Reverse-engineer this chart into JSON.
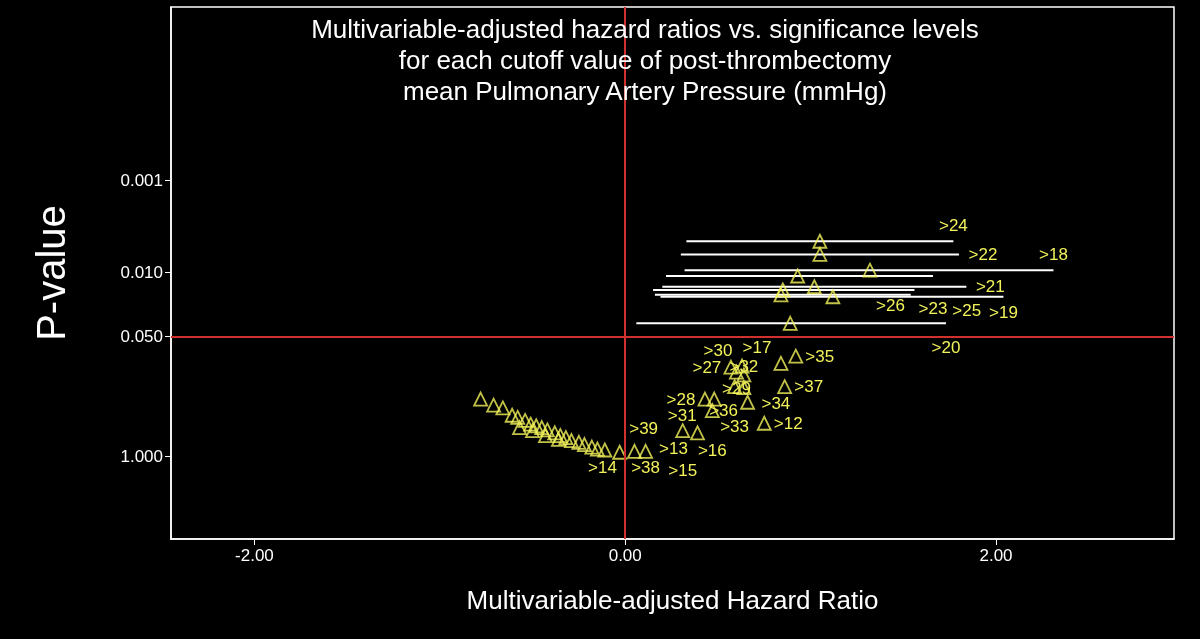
{
  "chart_data": {
    "type": "scatter",
    "title": "Multivariable-adjusted hazard ratios vs. significance levels\nfor each cutoff value of post-thrombectomy\nmean Pulmonary Artery Pressure (mmHg)",
    "xlabel": "Multivariable-adjusted Hazard Ratio",
    "ylabel": "P-value",
    "log": "y",
    "marker": "triangle",
    "grid": false,
    "xlim": [
      -2.45,
      2.96
    ],
    "xticks": [
      {
        "value": -2,
        "label": "-2.00"
      },
      {
        "value": 0,
        "label": "0.00"
      },
      {
        "value": 2,
        "label": "2.00"
      }
    ],
    "ylim": [
      8,
      1.3e-05
    ],
    "yticks": [
      0.001,
      {
        "value": 0.01,
        "label": "0.010"
      },
      {
        "value": 0.05,
        "label": "0.050"
      },
      {
        "value": 1,
        "label": "1.000"
      }
    ],
    "ref_lines": [
      {
        "axis": "x",
        "value": 0,
        "color": "#d0312d"
      },
      {
        "axis": "y",
        "value": 0.05,
        "color": "#d0312d"
      }
    ],
    "series": [
      {
        "color": "#f2f25a",
        "x": [
          1.05,
          1.05,
          1.32,
          0.93,
          1.02,
          0.85,
          0.84,
          1.12,
          0.89,
          0.57,
          0.63,
          0.6,
          0.64,
          0.59,
          0.64,
          0.84,
          0.92,
          0.86,
          0.43,
          0.48,
          0.47,
          0.31,
          0.39,
          0.75,
          0.66,
          -0.78,
          -0.71,
          -0.66,
          -0.61,
          -0.58,
          -0.54,
          -0.51,
          -0.48,
          -0.45,
          -0.42,
          -0.38,
          -0.35,
          -0.32,
          -0.29,
          -0.25,
          -0.22,
          -0.18,
          -0.15,
          -0.11,
          -0.03,
          0.05,
          0.11,
          -0.57,
          -0.5,
          -0.43,
          -0.36
        ],
        "values": [
          0.0046,
          0.0064,
          0.0095,
          0.011,
          0.0144,
          0.0156,
          0.0176,
          0.0185,
          0.036,
          0.108,
          0.105,
          0.122,
          0.131,
          0.176,
          0.18,
          0.098,
          0.082,
          0.176,
          0.24,
          0.24,
          0.32,
          0.53,
          0.56,
          0.44,
          0.26,
          0.24,
          0.28,
          0.3,
          0.36,
          0.38,
          0.41,
          0.45,
          0.47,
          0.49,
          0.52,
          0.56,
          0.6,
          0.63,
          0.68,
          0.71,
          0.75,
          0.8,
          0.84,
          0.86,
          0.91,
          0.89,
          0.89,
          0.49,
          0.53,
          0.6,
          0.66
        ],
        "xerrors": [
          [
            0.33,
            1.77
          ],
          [
            0.3,
            1.8
          ],
          [
            0.32,
            2.31
          ],
          [
            0.22,
            1.66
          ],
          [
            0.2,
            1.84
          ],
          [
            0.15,
            1.56
          ],
          [
            0.16,
            1.54
          ],
          [
            0.19,
            2.04
          ],
          [
            0.06,
            1.73
          ],
          null,
          null,
          null,
          null,
          null,
          null,
          null,
          null,
          null,
          null,
          null,
          null,
          null,
          null,
          null,
          null,
          null,
          null,
          null,
          null,
          null,
          null,
          null,
          null,
          null,
          null,
          null,
          null,
          null,
          null,
          null,
          null,
          null,
          null,
          null,
          null,
          null,
          null,
          null,
          null,
          null,
          null
        ]
      }
    ],
    "annotations": [
      {
        "text": ">24",
        "x": 1.77,
        "y": 0.0046
      },
      {
        "text": ">22",
        "x": 1.8,
        "y": 0.0064
      },
      {
        "text": ">18",
        "x": 2.31,
        "y": 0.0095
      },
      {
        "text": ">23",
        "x": 1.66,
        "y": 0.011
      },
      {
        "text": ">21",
        "x": 1.84,
        "y": 0.0144
      },
      {
        "text": ">26",
        "x": 1.56,
        "y": 0.0156
      },
      {
        "text": ">25",
        "x": 1.54,
        "y": 0.0176
      },
      {
        "text": ">19",
        "x": 2.04,
        "y": 0.0185
      },
      {
        "text": ">20",
        "x": 1.73,
        "y": 0.036
      },
      {
        "text": ">35",
        "x": 0.92,
        "y": 0.082
      },
      {
        "text": ">17",
        "x": 0.84,
        "y": 0.098
      },
      {
        "text": ">27",
        "x": 0.57,
        "y": 0.108
      },
      {
        "text": ">30",
        "x": 0.63,
        "y": 0.105
      },
      {
        "text": ">29",
        "x": 0.6,
        "y": 0.122
      },
      {
        "text": ">32",
        "x": 0.64,
        "y": 0.131
      },
      {
        "text": ">33",
        "x": 0.59,
        "y": 0.176
      },
      {
        "text": ">34",
        "x": 0.64,
        "y": 0.18
      },
      {
        "text": ">37",
        "x": 0.86,
        "y": 0.176
      },
      {
        "text": ">28",
        "x": 0.43,
        "y": 0.24
      },
      {
        "text": ">31",
        "x": 0.48,
        "y": 0.24
      },
      {
        "text": ">36",
        "x": 0.66,
        "y": 0.26
      },
      {
        "text": ">16",
        "x": 0.47,
        "y": 0.32
      },
      {
        "text": ">12",
        "x": 0.75,
        "y": 0.44
      },
      {
        "text": ">15",
        "x": 0.31,
        "y": 0.53
      },
      {
        "text": ">13",
        "x": 0.39,
        "y": 0.56
      },
      {
        "text": ">14",
        "x": 0.05,
        "y": 0.89
      },
      {
        "text": ">38",
        "x": 0.11,
        "y": 0.89
      },
      {
        "text": ">39",
        "x": -0.03,
        "y": 0.91
      }
    ]
  }
}
